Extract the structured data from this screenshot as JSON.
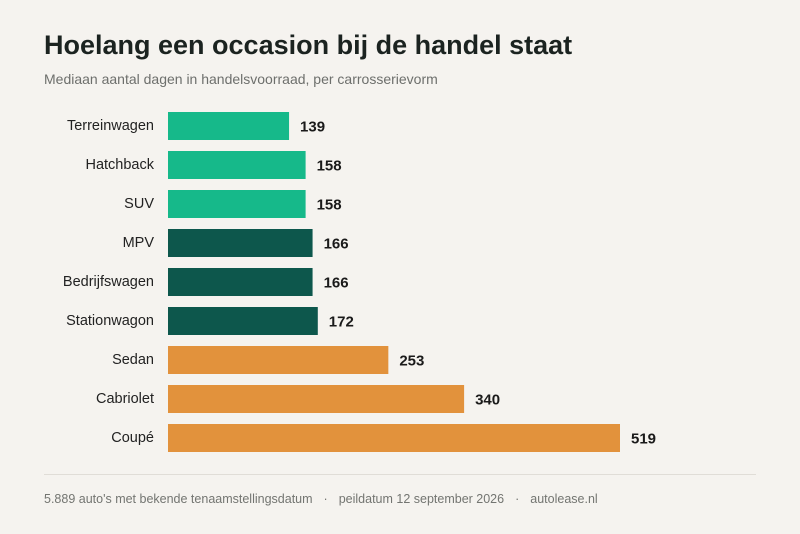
{
  "header": {
    "title": "Hoelang een occasion bij de handel staat",
    "subtitle": "Mediaan aantal dagen in handelsvoorraad, per carrosserievorm"
  },
  "footer": {
    "count": "5.889 auto's met bekende tenaamstellingsdatum",
    "separator": "·",
    "date": "peildatum 12 september 2026",
    "source": "autolease.nl"
  },
  "colors": {
    "short": "#16b98a",
    "medium": "#0d574c",
    "long": "#e2923c"
  },
  "chart_data": {
    "type": "bar",
    "orientation": "horizontal",
    "title": "Hoelang een occasion bij de handel staat",
    "subtitle": "Mediaan aantal dagen in handelsvoorraad, per carrosserievorm",
    "categories": [
      "Terreinwagen",
      "Hatchback",
      "SUV",
      "MPV",
      "Bedrijfswagen",
      "Stationwagon",
      "Sedan",
      "Cabriolet",
      "Coupé"
    ],
    "values": [
      139,
      158,
      158,
      166,
      166,
      172,
      253,
      340,
      519
    ],
    "bar_colors": [
      "#16b98a",
      "#16b98a",
      "#16b98a",
      "#0d574c",
      "#0d574c",
      "#0d574c",
      "#e2923c",
      "#e2923c",
      "#e2923c"
    ],
    "xlim": [
      0,
      519
    ],
    "grid": false,
    "legend": "none",
    "data_labels": true
  }
}
